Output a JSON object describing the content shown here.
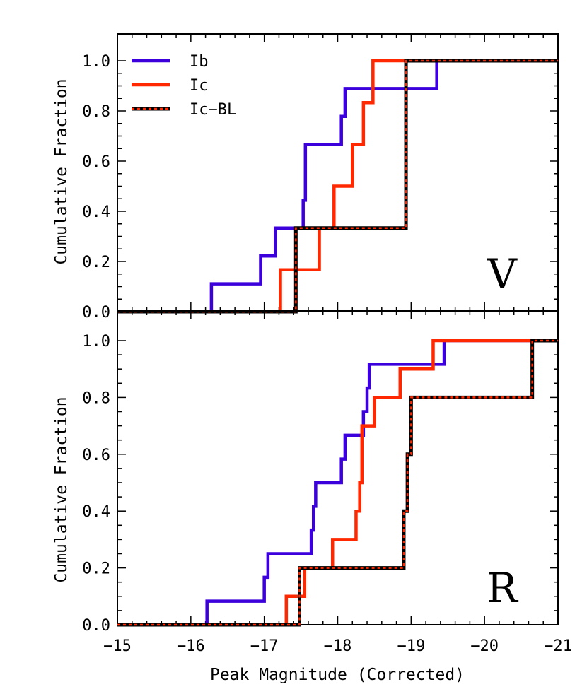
{
  "chart_data": {
    "type": "line",
    "step": true,
    "xlabel": "Peak Magnitude (Corrected)",
    "ylabel": "Cumulative Fraction",
    "xlim": [
      -15,
      -21
    ],
    "ylim": [
      -0.02,
      1.08
    ],
    "x_ticks": [
      -15,
      -16,
      -17,
      -18,
      -19,
      -20,
      -21
    ],
    "x_tick_labels": [
      "−15",
      "−16",
      "−17",
      "−18",
      "−19",
      "−20",
      "−21"
    ],
    "y_ticks": [
      0.0,
      0.2,
      0.4,
      0.6,
      0.8,
      1.0
    ],
    "y_tick_labels": [
      "0.0",
      "0.2",
      "0.4",
      "0.6",
      "0.8",
      "1.0"
    ],
    "colors": {
      "Ib": "#3c00dc",
      "Ic": "#ff2800",
      "Ic-BL": "#000000",
      "Ic-BL_dash": "#ff2800"
    },
    "panels": [
      {
        "label": "V",
        "legend": [
          "Ib",
          "Ic",
          "Ic−BL"
        ],
        "legend_position": "top-left",
        "series": [
          {
            "name": "Ib",
            "x": [
              -16.28,
              -16.95,
              -17.15,
              -17.53,
              -17.56,
              -18.05,
              -18.1,
              -19.35
            ],
            "y": [
              0.111,
              0.222,
              0.333,
              0.444,
              0.667,
              0.778,
              0.889,
              1.0
            ]
          },
          {
            "name": "Ic",
            "x": [
              -17.22,
              -17.75,
              -17.95,
              -18.2,
              -18.35,
              -18.48
            ],
            "y": [
              0.167,
              0.333,
              0.5,
              0.667,
              0.833,
              1.0
            ]
          },
          {
            "name": "Ic−BL",
            "x": [
              -17.43,
              -18.93
            ],
            "y": [
              0.333,
              1.0
            ]
          }
        ]
      },
      {
        "label": "R",
        "legend": [],
        "series": [
          {
            "name": "Ib",
            "x": [
              -16.22,
              -17.0,
              -17.05,
              -17.1,
              -17.64,
              -17.67,
              -17.7,
              -18.05,
              -18.1,
              -18.35,
              -18.4,
              -18.43,
              -18.46,
              -19.45
            ],
            "y": [
              0.083,
              0.167,
              0.25,
              0.25,
              0.333,
              0.417,
              0.5,
              0.583,
              0.667,
              0.75,
              0.833,
              0.917,
              0.917,
              1.0
            ]
          },
          {
            "name": "Ic",
            "x": [
              -17.3,
              -17.55,
              -17.93,
              -18.25,
              -18.3,
              -18.33,
              -18.5,
              -18.85,
              -19.3
            ],
            "y": [
              0.1,
              0.2,
              0.3,
              0.4,
              0.5,
              0.7,
              0.8,
              0.9,
              1.0
            ]
          },
          {
            "name": "Ic−BL",
            "x": [
              -17.48,
              -18.9,
              -18.95,
              -19.0,
              -20.65
            ],
            "y": [
              0.2,
              0.4,
              0.6,
              0.8,
              1.0
            ]
          }
        ]
      }
    ]
  }
}
